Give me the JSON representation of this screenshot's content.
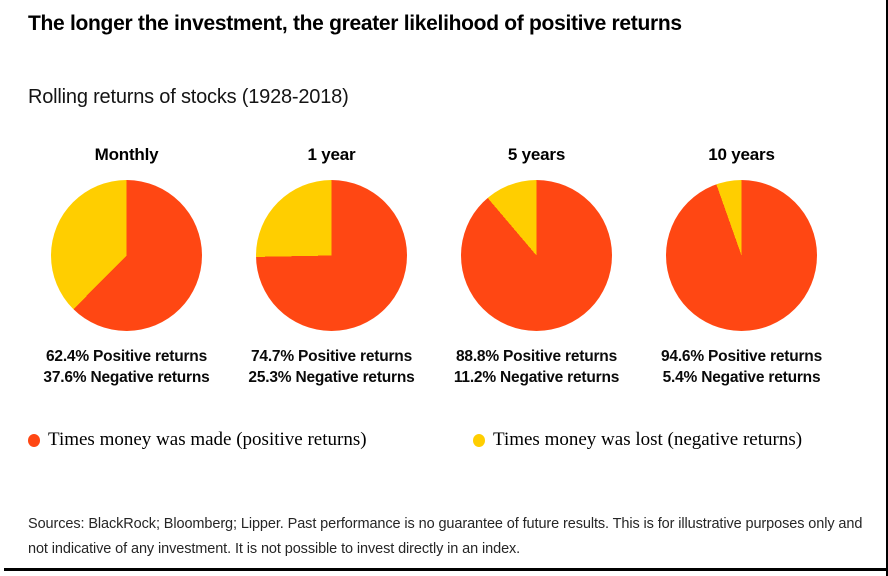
{
  "page": {
    "title": "The longer the investment, the greater likelihood of positive returns",
    "subtitle": "Rolling returns of stocks (1928-2018)"
  },
  "chart_data": {
    "type": "pie",
    "title": "Rolling returns of stocks (1928-2018)",
    "period_range": "1928-2018",
    "colors": {
      "positive": "#FF4713",
      "negative": "#FFCE00"
    },
    "legend": [
      {
        "name": "legend-positive",
        "label": "Times money was made (positive returns)",
        "color": "#FF4713"
      },
      {
        "name": "legend-negative",
        "label": "Times money was lost (negative returns)",
        "color": "#FFCE00"
      }
    ],
    "pies": [
      {
        "label": "Monthly",
        "values": [
          62.4,
          37.6
        ],
        "slice_names": [
          "Positive returns",
          "Negative returns"
        ],
        "positive_text": "62.4% Positive returns",
        "negative_text": "37.6% Negative returns"
      },
      {
        "label": "1 year",
        "values": [
          74.7,
          25.3
        ],
        "slice_names": [
          "Positive returns",
          "Negative returns"
        ],
        "positive_text": "74.7% Positive returns",
        "negative_text": "25.3% Negative returns"
      },
      {
        "label": "5 years",
        "values": [
          88.8,
          11.2
        ],
        "slice_names": [
          "Positive returns",
          "Negative returns"
        ],
        "positive_text": "88.8% Positive returns",
        "negative_text": "11.2% Negative returns"
      },
      {
        "label": "10 years",
        "values": [
          94.6,
          5.4
        ],
        "slice_names": [
          "Positive returns",
          "Negative returns"
        ],
        "positive_text": "94.6% Positive returns",
        "negative_text": "5.4% Negative returns"
      }
    ]
  },
  "footnote": "Sources: BlackRock; Bloomberg; Lipper. Past performance is no guarantee of future results. This is for illustrative purposes only and not indicative of any investment. It is not possible to invest directly in an index."
}
